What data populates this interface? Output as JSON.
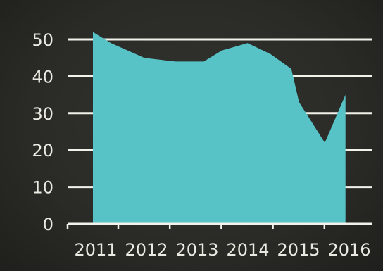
{
  "chart_data": {
    "type": "area",
    "categories": [
      "2011",
      "2012",
      "2013",
      "2014",
      "2015",
      "2016"
    ],
    "x": [
      2011.0,
      2011.35,
      2012.0,
      2012.6,
      2013.15,
      2013.5,
      2014.0,
      2014.45,
      2014.85,
      2015.0,
      2015.5,
      2015.9
    ],
    "series": [
      {
        "values": [
          52,
          49,
          45,
          44,
          44,
          47,
          49,
          46,
          42,
          33,
          22,
          35
        ]
      }
    ],
    "y_ticks": [
      "0",
      "10",
      "20",
      "30",
      "40",
      "50"
    ],
    "ylim": [
      0,
      50
    ],
    "grid": true,
    "legend": "none",
    "title": "",
    "xlabel": "",
    "ylabel": "",
    "colors": {
      "area": "#58c3c7",
      "grid": "#f2f2ea",
      "text": "#eaeae2",
      "background": "#2a2a27"
    }
  }
}
